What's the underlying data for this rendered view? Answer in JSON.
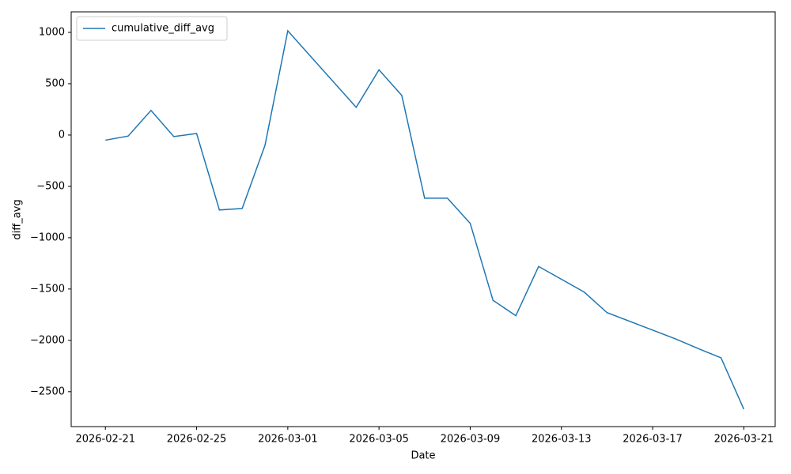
{
  "chart_data": {
    "type": "line",
    "x_label": "Date",
    "y_label": "diff_avg",
    "x": [
      "2026-02-21",
      "2026-02-22",
      "2026-02-23",
      "2026-02-24",
      "2026-02-25",
      "2026-02-26",
      "2026-02-27",
      "2026-02-28",
      "2026-03-01",
      "2026-03-04",
      "2026-03-05",
      "2026-03-06",
      "2026-03-07",
      "2026-03-08",
      "2026-03-09",
      "2026-03-10",
      "2026-03-11",
      "2026-03-12",
      "2026-03-14",
      "2026-03-15",
      "2026-03-18",
      "2026-03-19",
      "2026-03-20",
      "2026-03-21"
    ],
    "series": [
      {
        "name": "cumulative_diff_avg",
        "color": "#1f77b4",
        "values": [
          -50,
          -10,
          240,
          -15,
          15,
          -730,
          -715,
          -100,
          1015,
          270,
          635,
          385,
          -615,
          -615,
          -860,
          -1610,
          -1760,
          -1280,
          -1530,
          -1730,
          -1985,
          -2080,
          -2170,
          -2670
        ]
      }
    ],
    "xlim": [
      "2026-02-19T12:00",
      "2026-03-22T09:00"
    ],
    "xticks": [
      "2026-02-21",
      "2026-02-25",
      "2026-03-01",
      "2026-03-05",
      "2026-03-09",
      "2026-03-13",
      "2026-03-17",
      "2026-03-21"
    ],
    "ylim": [
      -2840,
      1200
    ],
    "yticks": [
      {
        "value": -2500,
        "label": "−2500"
      },
      {
        "value": -2000,
        "label": "−2000"
      },
      {
        "value": -1500,
        "label": "−1500"
      },
      {
        "value": -1000,
        "label": "−1000"
      },
      {
        "value": -500,
        "label": "−500"
      },
      0,
      500,
      1000
    ],
    "grid": false,
    "legend": "upper left"
  }
}
